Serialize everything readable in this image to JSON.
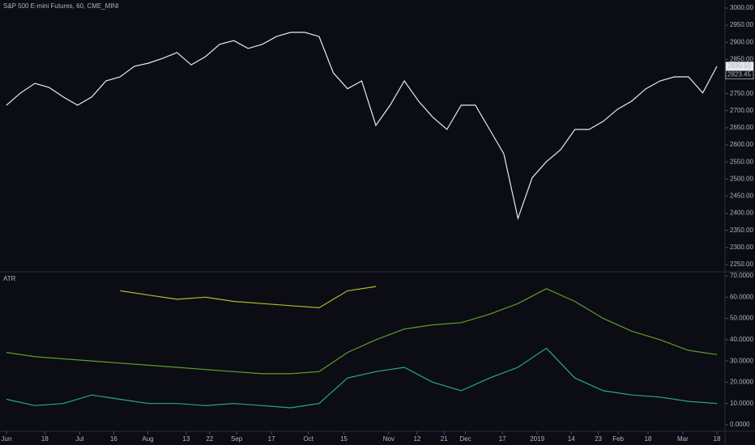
{
  "chart_data": [
    {
      "type": "line",
      "title": "S&P 500 E-mini Futures, 60, CME_MINI",
      "xlim": [
        0,
        100
      ],
      "ylim": [
        2250,
        3000
      ],
      "yticks": [
        {
          "value": 2250,
          "label": "2250.00"
        },
        {
          "value": 2300,
          "label": "2300.00"
        },
        {
          "value": 2350,
          "label": "2350.00"
        },
        {
          "value": 2400,
          "label": "2400.00"
        },
        {
          "value": 2450,
          "label": "2450.00"
        },
        {
          "value": 2500,
          "label": "2500.00"
        },
        {
          "value": 2550,
          "label": "2550.00"
        },
        {
          "value": 2600,
          "label": "2600.00"
        },
        {
          "value": 2650,
          "label": "2650.00"
        },
        {
          "value": 2700,
          "label": "2700.00"
        },
        {
          "value": 2750,
          "label": "2750.00"
        },
        {
          "value": 2800,
          "label": "2800.00"
        },
        {
          "value": 2850,
          "label": "2850.00"
        },
        {
          "value": 2900,
          "label": "2900.00"
        },
        {
          "value": 2950,
          "label": "2950.00"
        },
        {
          "value": 3000,
          "label": "3000.00"
        }
      ],
      "price_labels": [
        {
          "value": 2830.5,
          "label": "2830.50"
        },
        {
          "value": 2823.45,
          "label": "2823.45"
        }
      ],
      "x": [
        0,
        2,
        4,
        6,
        8,
        10,
        12,
        14,
        16,
        18,
        20,
        22,
        24,
        26,
        28,
        30,
        32,
        34,
        36,
        38,
        40,
        42,
        44,
        46,
        48,
        50,
        52,
        54,
        56,
        58,
        60,
        62,
        64,
        66,
        68,
        70,
        72,
        74,
        76,
        78,
        80,
        82,
        84,
        86,
        88,
        90,
        92,
        94,
        96,
        98,
        100
      ],
      "series": [
        {
          "color": "#e8eaf0",
          "values": [
            2716,
            2752,
            2780,
            2768,
            2740,
            2716,
            2740,
            2787,
            2799,
            2830,
            2839,
            2853,
            2870,
            2834,
            2858,
            2894,
            2905,
            2882,
            2894,
            2917,
            2929,
            2929,
            2917,
            2811,
            2764,
            2787,
            2657,
            2716,
            2787,
            2728,
            2681,
            2645,
            2716,
            2716,
            2645,
            2574,
            2385,
            2504,
            2551,
            2586,
            2645,
            2645,
            2669,
            2704,
            2728,
            2764,
            2787,
            2799,
            2799,
            2752,
            2830
          ]
        }
      ]
    },
    {
      "type": "line",
      "title": "ATR",
      "xlim": [
        0,
        100
      ],
      "ylim": [
        0,
        70
      ],
      "yticks": [
        {
          "value": 0,
          "label": "0.0000"
        },
        {
          "value": 10,
          "label": "10.0000"
        },
        {
          "value": 20,
          "label": "20.0000"
        },
        {
          "value": 30,
          "label": "30.0000"
        },
        {
          "value": 40,
          "label": "40.0000"
        },
        {
          "value": 50,
          "label": "50.0000"
        },
        {
          "value": 60,
          "label": "60.0000"
        },
        {
          "value": 70,
          "label": "70.0000"
        }
      ],
      "x": [
        0,
        4,
        8,
        12,
        16,
        20,
        24,
        28,
        32,
        36,
        40,
        44,
        48,
        52,
        56,
        60,
        64,
        68,
        72,
        76,
        80,
        84,
        88,
        92,
        96,
        100
      ],
      "xticks": [
        {
          "value": 0,
          "label": "Jun"
        },
        {
          "value": 5.4,
          "label": "18"
        },
        {
          "value": 10.3,
          "label": "Jul"
        },
        {
          "value": 15.1,
          "label": "16"
        },
        {
          "value": 19.9,
          "label": "Aug"
        },
        {
          "value": 25.3,
          "label": "13"
        },
        {
          "value": 28.6,
          "label": "22"
        },
        {
          "value": 32.4,
          "label": "Sep"
        },
        {
          "value": 37.3,
          "label": "17"
        },
        {
          "value": 42.5,
          "label": "Oct"
        },
        {
          "value": 47.5,
          "label": "15"
        },
        {
          "value": 53.8,
          "label": "Nov"
        },
        {
          "value": 57.8,
          "label": "12"
        },
        {
          "value": 61.6,
          "label": "21"
        },
        {
          "value": 64.6,
          "label": "Dec"
        },
        {
          "value": 69.8,
          "label": "17"
        },
        {
          "value": 74.7,
          "label": "2019"
        },
        {
          "value": 79.5,
          "label": "14"
        },
        {
          "value": 83.3,
          "label": "23"
        },
        {
          "value": 86.1,
          "label": "Feb"
        },
        {
          "value": 90.3,
          "label": "18"
        },
        {
          "value": 95.2,
          "label": "Mar"
        },
        {
          "value": 100,
          "label": "18"
        }
      ],
      "series": [
        {
          "color": "#b8b82c",
          "values": [
            null,
            null,
            null,
            null,
            63,
            61,
            59,
            60,
            58,
            57,
            56,
            55,
            63,
            65,
            null,
            null,
            null,
            null,
            null,
            null,
            null,
            null,
            null,
            null,
            null,
            null
          ]
        },
        {
          "color": "#5e9e2c",
          "values": [
            34,
            32,
            31,
            30,
            29,
            28,
            27,
            26,
            25,
            24,
            24,
            25,
            34,
            40,
            45,
            47,
            48,
            52,
            57,
            64,
            58,
            50,
            44,
            40,
            35,
            33
          ]
        },
        {
          "color": "#26a69a",
          "values": [
            12,
            9,
            10,
            14,
            12,
            10,
            10,
            9,
            10,
            9,
            8,
            10,
            22,
            25,
            27,
            20,
            16,
            22,
            27,
            36,
            22,
            16,
            14,
            13,
            11,
            10
          ]
        }
      ]
    }
  ]
}
